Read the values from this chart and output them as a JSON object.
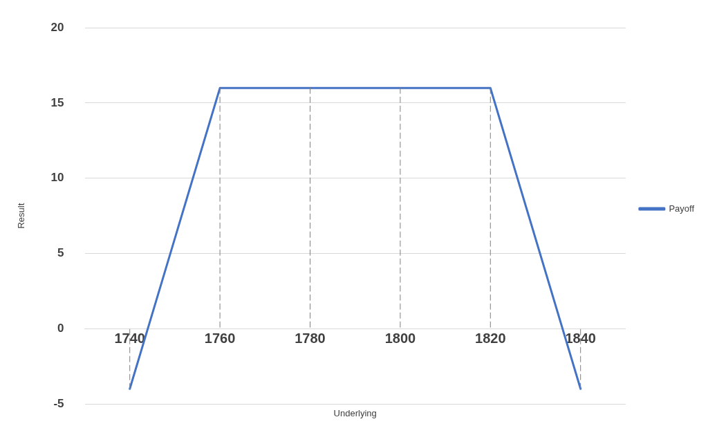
{
  "chart_data": {
    "type": "line",
    "xlabel": "Underlying",
    "ylabel": "Result",
    "x": [
      1740,
      1760,
      1780,
      1800,
      1820,
      1840
    ],
    "series": [
      {
        "name": "Payoff",
        "color": "#4472c4",
        "values": [
          -4,
          16,
          16,
          16,
          16,
          -4
        ]
      },
      {
        "color": "#7f7f7f",
        "line_style": "dashed",
        "x": [
          1740,
          1740
        ],
        "values": [
          -4,
          0
        ]
      },
      {
        "color": "#7f7f7f",
        "line_style": "dashed",
        "x": [
          1760,
          1760
        ],
        "values": [
          16,
          0
        ]
      },
      {
        "color": "#7f7f7f",
        "line_style": "dashed",
        "x": [
          1780,
          1780
        ],
        "values": [
          16,
          0
        ]
      },
      {
        "color": "#7f7f7f",
        "line_style": "dashed",
        "x": [
          1800,
          1800
        ],
        "values": [
          16,
          0
        ]
      },
      {
        "color": "#7f7f7f",
        "line_style": "dashed",
        "x": [
          1820,
          1820
        ],
        "values": [
          16,
          0
        ]
      },
      {
        "color": "#7f7f7f",
        "line_style": "dashed",
        "x": [
          1840,
          1840
        ],
        "values": [
          -4,
          0
        ]
      }
    ],
    "xlim": [
      1730,
      1850
    ],
    "xticks": [
      1740,
      1760,
      1780,
      1800,
      1820,
      1840
    ],
    "ylim": [
      -5,
      20
    ],
    "yticks": [
      -5,
      0,
      5,
      10,
      15,
      20
    ],
    "grid": "y",
    "legend": "right",
    "marker": "none",
    "line_style": "solid"
  }
}
